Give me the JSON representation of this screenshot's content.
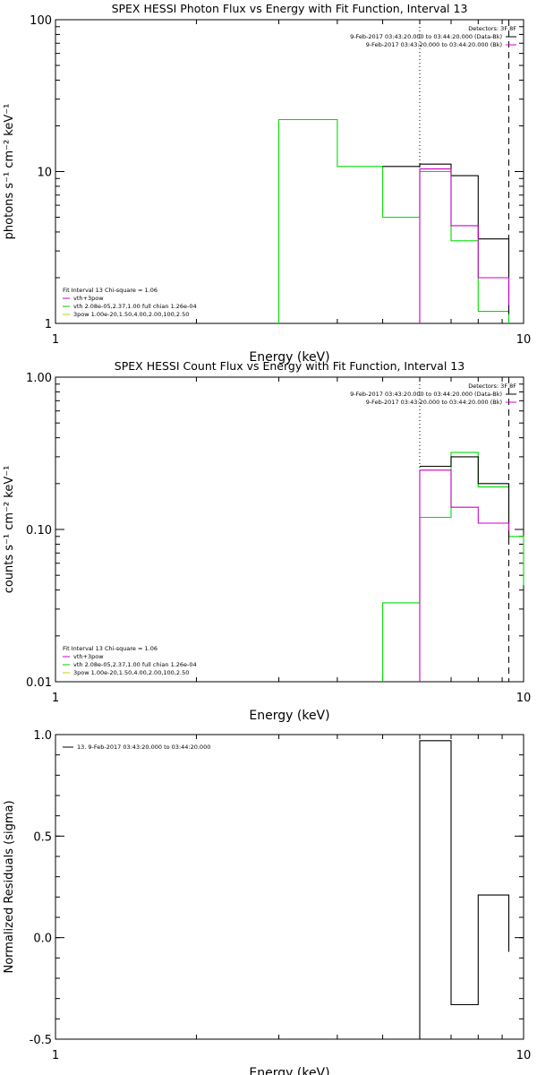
{
  "chart_data": [
    {
      "type": "line",
      "title": "SPEX HESSI Photon Flux vs Energy with Fit Function, Interval 13",
      "xlabel": "Energy (keV)",
      "ylabel": "photons s⁻¹ cm⁻² keV⁻¹",
      "xscale": "log",
      "yscale": "log",
      "xlim": [
        1,
        10
      ],
      "ylim": [
        1,
        100
      ],
      "xticks": [
        {
          "v": 1,
          "label": "1"
        },
        {
          "v": 10,
          "label": "10"
        }
      ],
      "yticks": [
        {
          "v": 1,
          "label": "1"
        },
        {
          "v": 10,
          "label": "10"
        },
        {
          "v": 100,
          "label": "100"
        }
      ],
      "vlines": [
        {
          "x": 6.0,
          "style": "dotted",
          "color": "#000000"
        },
        {
          "x": 9.3,
          "style": "dashed",
          "color": "#000000"
        }
      ],
      "legend_topright": {
        "header": "Detectors: 3F 8F",
        "entries": [
          {
            "label": "9-Feb-2017 03:43:20.000 to 03:44:20.000 (Data-Bk)",
            "color": "#000000"
          },
          {
            "label": "9-Feb-2017 03:43:20.000 to 03:44:20.000 (Bk)",
            "color": "#cc00cc"
          }
        ]
      },
      "legend_fit": {
        "header": "Fit Interval 13    Chi-square = 1.06",
        "entries": [
          {
            "label": "vth+3pow",
            "color": "#cc00cc"
          },
          {
            "label": "vth 2.08e-05,2.37,1.00  full chian 1.26e-04",
            "color": "#00cc00"
          },
          {
            "label": "3pow 1.00e-20,1.50,4.00,2.00,100,2.50",
            "color": "#cccc00"
          }
        ]
      },
      "series": [
        {
          "color": "#00dd00",
          "drop_to_floor": true,
          "edges": [
            3.0,
            4.0,
            5.0,
            6.0,
            7.0,
            8.0,
            9.3
          ],
          "values": [
            22.0,
            10.8,
            5.0,
            10.0,
            3.5,
            1.2
          ]
        },
        {
          "color": "#000000",
          "drop_to_floor": false,
          "edges": [
            5.0,
            6.0,
            7.0,
            8.0,
            9.3
          ],
          "values": [
            10.8,
            11.2,
            9.4,
            3.6,
            1.15
          ]
        },
        {
          "color": "#cc00cc",
          "drop_to_floor": true,
          "edges": [
            6.0,
            7.0,
            8.0,
            9.3
          ],
          "values": [
            10.4,
            4.4,
            2.0,
            1.32
          ]
        }
      ]
    },
    {
      "type": "line",
      "title": "SPEX HESSI Count Flux vs Energy with Fit Function, Interval 13",
      "xlabel": "Energy (keV)",
      "ylabel": "counts s⁻¹ cm⁻² keV⁻¹",
      "xscale": "log",
      "yscale": "log",
      "xlim": [
        1,
        10
      ],
      "ylim": [
        0.01,
        1.0
      ],
      "xticks": [
        {
          "v": 1,
          "label": "1"
        },
        {
          "v": 10,
          "label": "10"
        }
      ],
      "yticks": [
        {
          "v": 0.01,
          "label": "0.01"
        },
        {
          "v": 0.1,
          "label": "0.10"
        },
        {
          "v": 1.0,
          "label": "1.00"
        }
      ],
      "vlines": [
        {
          "x": 6.0,
          "style": "dotted",
          "color": "#000000"
        },
        {
          "x": 9.3,
          "style": "dashed",
          "color": "#000000"
        }
      ],
      "legend_topright": {
        "header": "Detectors: 3F 8F",
        "entries": [
          {
            "label": "9-Feb-2017 03:43:20.000 to 03:44:20.000 (Data-Bk)",
            "color": "#000000"
          },
          {
            "label": "9-Feb-2017 03:43:20.000 to 03:44:20.000 (Bk)",
            "color": "#cc00cc"
          }
        ]
      },
      "legend_fit": {
        "header": "Fit Interval 13    Chi-square = 1.06",
        "entries": [
          {
            "label": "vth+3pow",
            "color": "#cc00cc"
          },
          {
            "label": "vth 2.08e-05,2.37,1.00  full chian 1.26e-04",
            "color": "#00cc00"
          },
          {
            "label": "3pow 1.00e-20,1.50,4.00,2.00,100,2.50",
            "color": "#cccc00"
          }
        ]
      },
      "series": [
        {
          "color": "#00dd00",
          "drop_to_floor": true,
          "edges": [
            5.0,
            6.0,
            7.0,
            8.0,
            9.3,
            10.0
          ],
          "values": [
            0.033,
            0.12,
            0.32,
            0.19,
            0.09,
            0.043
          ]
        },
        {
          "color": "#000000",
          "drop_to_floor": false,
          "edges": [
            6.0,
            7.0,
            8.0,
            9.3
          ],
          "values": [
            0.26,
            0.3,
            0.2,
            0.087
          ]
        },
        {
          "color": "#cc00cc",
          "drop_to_floor": true,
          "edges": [
            6.0,
            7.0,
            8.0,
            9.3
          ],
          "values": [
            0.245,
            0.14,
            0.11,
            0.098
          ]
        }
      ]
    },
    {
      "type": "line",
      "title": "",
      "xlabel": "Energy (keV)",
      "ylabel": "Normalized Residuals (sigma)",
      "xscale": "log",
      "yscale": "linear",
      "xlim": [
        1,
        10
      ],
      "ylim": [
        -0.5,
        1.0
      ],
      "xticks": [
        {
          "v": 1,
          "label": "1"
        },
        {
          "v": 10,
          "label": "10"
        }
      ],
      "yticks": [
        {
          "v": -0.5,
          "label": "-0.5"
        },
        {
          "v": 0.0,
          "label": "0.0"
        },
        {
          "v": 0.5,
          "label": "0.5"
        },
        {
          "v": 1.0,
          "label": "1.0"
        }
      ],
      "vlines": [],
      "legend_topleft": {
        "entries": [
          {
            "label": "13.  9-Feb-2017 03:43:20.000 to 03:44:20.000",
            "color": "#000000"
          }
        ]
      },
      "series": [
        {
          "color": "#000000",
          "drop_to_floor": true,
          "edges": [
            6.0,
            7.0,
            8.0,
            9.3
          ],
          "values": [
            0.97,
            -0.33,
            0.21,
            -0.07
          ]
        }
      ]
    }
  ]
}
